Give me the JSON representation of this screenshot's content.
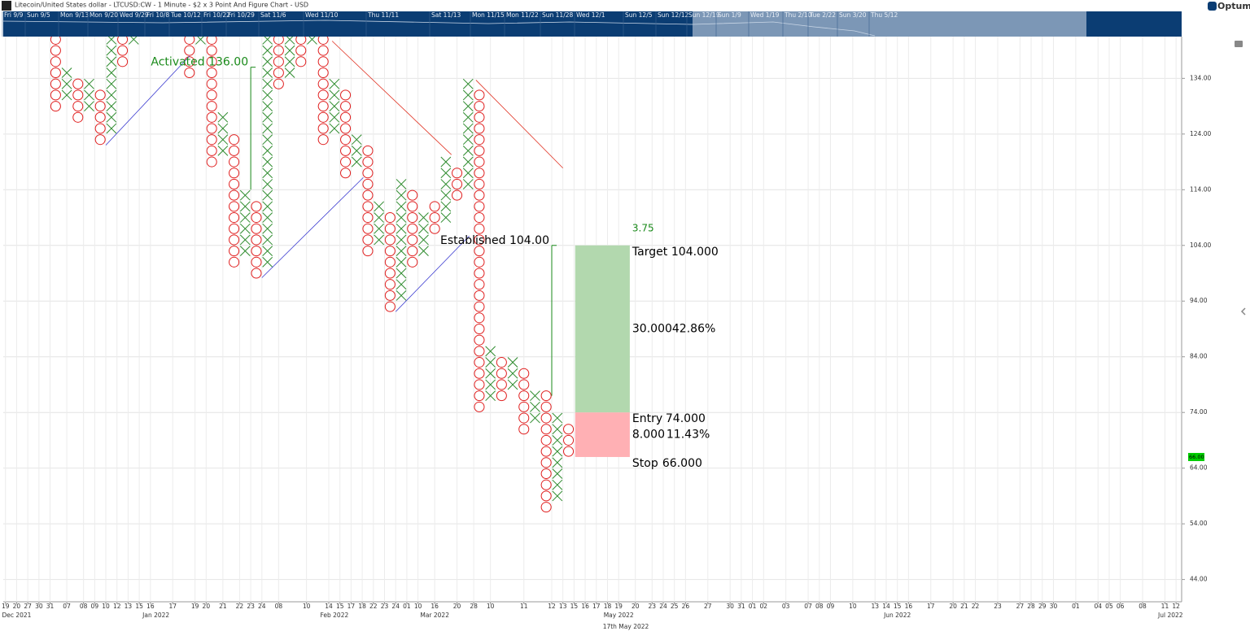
{
  "chart_data": {
    "type": "point_and_figure",
    "title": "Litecoin/United States dollar - LTCUSD:CW - 1 Minute - $2 x 3 Point And Figure Chart - USD",
    "brand": "Optuma",
    "caption": "17th May 2022",
    "box_size": 2,
    "x_color": "#2e8b2e",
    "o_color": "#e02020",
    "grid": true,
    "xlim": [
      -4.7,
      101
    ],
    "ylim": [
      40,
      141.5
    ],
    "yticks": [
      {
        "value": 44,
        "label": "44.00"
      },
      {
        "value": 54,
        "label": "54.00"
      },
      {
        "value": 64,
        "label": "64.00"
      },
      {
        "value": 74,
        "label": "74.00"
      },
      {
        "value": 84,
        "label": "84.00"
      },
      {
        "value": 94,
        "label": "94.00"
      },
      {
        "value": 104,
        "label": "104.00"
      },
      {
        "value": 114,
        "label": "114.00"
      },
      {
        "value": 124,
        "label": "124.00"
      },
      {
        "value": 134,
        "label": "134.00"
      }
    ],
    "xticks": [
      {
        "value": -4.5,
        "label": "19"
      },
      {
        "value": -3.5,
        "label": "20"
      },
      {
        "value": -2.5,
        "label": "27"
      },
      {
        "value": -1.5,
        "label": "30"
      },
      {
        "value": -0.5,
        "label": "31"
      },
      {
        "value": 1,
        "label": "07"
      },
      {
        "value": 2.5,
        "label": "08"
      },
      {
        "value": 3.5,
        "label": "09"
      },
      {
        "value": 4.5,
        "label": "10"
      },
      {
        "value": 5.5,
        "label": "12"
      },
      {
        "value": 6.5,
        "label": "13"
      },
      {
        "value": 7.5,
        "label": "15"
      },
      {
        "value": 8.5,
        "label": "16"
      },
      {
        "value": 10.5,
        "label": "17"
      },
      {
        "value": 12.5,
        "label": "19"
      },
      {
        "value": 13.5,
        "label": "20"
      },
      {
        "value": 15,
        "label": "21"
      },
      {
        "value": 16.5,
        "label": "22"
      },
      {
        "value": 17.5,
        "label": "23"
      },
      {
        "value": 18.5,
        "label": "24"
      },
      {
        "value": 20,
        "label": "08"
      },
      {
        "value": 22.5,
        "label": "10"
      },
      {
        "value": 24.5,
        "label": "14"
      },
      {
        "value": 25.5,
        "label": "15"
      },
      {
        "value": 26.5,
        "label": "17"
      },
      {
        "value": 27.5,
        "label": "18"
      },
      {
        "value": 28.5,
        "label": "22"
      },
      {
        "value": 29.5,
        "label": "23"
      },
      {
        "value": 30.5,
        "label": "24"
      },
      {
        "value": 31.5,
        "label": "01"
      },
      {
        "value": 32.5,
        "label": "10"
      },
      {
        "value": 34,
        "label": "16"
      },
      {
        "value": 36,
        "label": "20"
      },
      {
        "value": 37.5,
        "label": "28"
      },
      {
        "value": 39,
        "label": "10"
      },
      {
        "value": 42,
        "label": "11"
      },
      {
        "value": 44.5,
        "label": "12"
      },
      {
        "value": 45.5,
        "label": "13"
      },
      {
        "value": 46.5,
        "label": "15"
      },
      {
        "value": 47.5,
        "label": "16"
      },
      {
        "value": 48.5,
        "label": "17"
      },
      {
        "value": 49.5,
        "label": "18"
      },
      {
        "value": 50.5,
        "label": "19"
      },
      {
        "value": 52,
        "label": "20"
      },
      {
        "value": 53.5,
        "label": "23"
      },
      {
        "value": 54.5,
        "label": "24"
      },
      {
        "value": 55.5,
        "label": "25"
      },
      {
        "value": 56.5,
        "label": "26"
      },
      {
        "value": 58.5,
        "label": "27"
      },
      {
        "value": 60.5,
        "label": "30"
      },
      {
        "value": 61.5,
        "label": "31"
      },
      {
        "value": 62.5,
        "label": "01"
      },
      {
        "value": 63.5,
        "label": "02"
      },
      {
        "value": 65.5,
        "label": "03"
      },
      {
        "value": 67.5,
        "label": "07"
      },
      {
        "value": 68.5,
        "label": "08"
      },
      {
        "value": 69.5,
        "label": "09"
      },
      {
        "value": 71.5,
        "label": "10"
      },
      {
        "value": 73.5,
        "label": "13"
      },
      {
        "value": 74.5,
        "label": "14"
      },
      {
        "value": 75.5,
        "label": "15"
      },
      {
        "value": 76.5,
        "label": "16"
      },
      {
        "value": 78.5,
        "label": "17"
      },
      {
        "value": 80.5,
        "label": "20"
      },
      {
        "value": 81.5,
        "label": "21"
      },
      {
        "value": 82.5,
        "label": "22"
      },
      {
        "value": 84.5,
        "label": "23"
      },
      {
        "value": 86.5,
        "label": "27"
      },
      {
        "value": 87.5,
        "label": "28"
      },
      {
        "value": 88.5,
        "label": "29"
      },
      {
        "value": 89.5,
        "label": "30"
      },
      {
        "value": 91.5,
        "label": "01"
      },
      {
        "value": 93.5,
        "label": "04"
      },
      {
        "value": 94.5,
        "label": "05"
      },
      {
        "value": 95.5,
        "label": "06"
      },
      {
        "value": 97.5,
        "label": "08"
      },
      {
        "value": 99.5,
        "label": "11"
      },
      {
        "value": 100.5,
        "label": "12"
      }
    ],
    "month_ticks": [
      {
        "value": -3.5,
        "label": "Dec 2021"
      },
      {
        "value": 9,
        "label": "Jan 2022"
      },
      {
        "value": 25,
        "label": "Feb 2022"
      },
      {
        "value": 34,
        "label": "Mar 2022"
      },
      {
        "value": 50.5,
        "label": "May 2022"
      },
      {
        "value": 75.5,
        "label": "Jun 2022"
      },
      {
        "value": 100,
        "label": "Jul 2022"
      }
    ],
    "navigator_labels": [
      "Fri 9/9",
      "Sun 9/5",
      "Mon 9/13",
      "Mon 9/20",
      "Wed 9/29",
      "Fri 10/8",
      "Tue 10/12",
      "Fri 10/22",
      "Fri 10/29",
      "Sat 11/6",
      "Wed 11/10",
      "Thu 11/11",
      "Sat 11/13",
      "Mon 11/15",
      "Mon 11/22",
      "Sun 11/28",
      "Wed 12/1",
      "Sun 12/5",
      "Sun 12/12",
      "Sun 12/19",
      "Sun 1/9",
      "Wed 1/19",
      "Thu 2/10",
      "Tue 2/22",
      "Sun 3/20",
      "Thu 5/12"
    ],
    "columns": [
      {
        "x": 0,
        "type": "O",
        "low": 129,
        "high": 141
      },
      {
        "x": 1,
        "type": "X",
        "low": 131,
        "high": 135
      },
      {
        "x": 2,
        "type": "O",
        "low": 127,
        "high": 133
      },
      {
        "x": 3,
        "type": "X",
        "low": 129,
        "high": 133
      },
      {
        "x": 4,
        "type": "O",
        "low": 123,
        "high": 131
      },
      {
        "x": 5,
        "type": "X",
        "low": 125,
        "high": 143
      },
      {
        "x": 6,
        "type": "O",
        "low": 137,
        "high": 141
      },
      {
        "x": 7,
        "type": "X",
        "low": 141,
        "high": 143
      },
      {
        "x": 12,
        "type": "O",
        "low": 135,
        "high": 141
      },
      {
        "x": 13,
        "type": "X",
        "low": 141,
        "high": 143
      },
      {
        "x": 14,
        "type": "O",
        "low": 119,
        "high": 141
      },
      {
        "x": 15,
        "type": "X",
        "low": 121,
        "high": 127
      },
      {
        "x": 16,
        "type": "O",
        "low": 101,
        "high": 123
      },
      {
        "x": 17,
        "type": "X",
        "low": 103,
        "high": 113
      },
      {
        "x": 18,
        "type": "O",
        "low": 99,
        "high": 111
      },
      {
        "x": 19,
        "type": "X",
        "low": 101,
        "high": 143
      },
      {
        "x": 20,
        "type": "O",
        "low": 133,
        "high": 141
      },
      {
        "x": 21,
        "type": "X",
        "low": 135,
        "high": 143
      },
      {
        "x": 22,
        "type": "O",
        "low": 137,
        "high": 141
      },
      {
        "x": 23,
        "type": "X",
        "low": 141,
        "high": 143
      },
      {
        "x": 24,
        "type": "O",
        "low": 123,
        "high": 141
      },
      {
        "x": 25,
        "type": "X",
        "low": 125,
        "high": 133
      },
      {
        "x": 26,
        "type": "O",
        "low": 117,
        "high": 131
      },
      {
        "x": 27,
        "type": "X",
        "low": 119,
        "high": 123
      },
      {
        "x": 28,
        "type": "O",
        "low": 103,
        "high": 121
      },
      {
        "x": 29,
        "type": "X",
        "low": 105,
        "high": 111
      },
      {
        "x": 30,
        "type": "O",
        "low": 93,
        "high": 109
      },
      {
        "x": 31,
        "type": "X",
        "low": 95,
        "high": 115
      },
      {
        "x": 32,
        "type": "O",
        "low": 101,
        "high": 113
      },
      {
        "x": 33,
        "type": "X",
        "low": 103,
        "high": 109
      },
      {
        "x": 34,
        "type": "O",
        "low": 107,
        "high": 111
      },
      {
        "x": 35,
        "type": "X",
        "low": 109,
        "high": 119
      },
      {
        "x": 36,
        "type": "O",
        "low": 113,
        "high": 117
      },
      {
        "x": 37,
        "type": "X",
        "low": 115,
        "high": 133
      },
      {
        "x": 38,
        "type": "O",
        "low": 75,
        "high": 131
      },
      {
        "x": 39,
        "type": "X",
        "low": 77,
        "high": 85
      },
      {
        "x": 40,
        "type": "O",
        "low": 77,
        "high": 83
      },
      {
        "x": 41,
        "type": "X",
        "low": 79,
        "high": 83
      },
      {
        "x": 42,
        "type": "O",
        "low": 71,
        "high": 81
      },
      {
        "x": 43,
        "type": "X",
        "low": 73,
        "high": 77
      },
      {
        "x": 44,
        "type": "O",
        "low": 57,
        "high": 77
      },
      {
        "x": 45,
        "type": "X",
        "low": 59,
        "high": 73
      },
      {
        "x": 46,
        "type": "O",
        "low": 67,
        "high": 71
      }
    ],
    "trendlines": [
      {
        "x1": 4.5,
        "y1": 122,
        "x2": 12,
        "y2": 138,
        "color": "#3a3ad0"
      },
      {
        "x1": 18.5,
        "y1": 98.2,
        "x2": 27.6,
        "y2": 116.2,
        "color": "#3a3ad0"
      },
      {
        "x1": 30.5,
        "y1": 92.1,
        "x2": 37.1,
        "y2": 105.7,
        "color": "#3a3ad0"
      },
      {
        "x1": 24.8,
        "y1": 140.7,
        "x2": 35.5,
        "y2": 120.3,
        "color": "#e03020"
      },
      {
        "x1": 37.7,
        "y1": 133.7,
        "x2": 45.5,
        "y2": 117.9,
        "color": "#e03020"
      }
    ],
    "annotations": [
      {
        "text": "Activated 136.00",
        "x": 17.5,
        "value": 136,
        "low": 114,
        "color": "#1a8a1a"
      },
      {
        "text": "Established 104.00",
        "x": 44.5,
        "value": 104,
        "low": 77,
        "color": "#000000"
      }
    ],
    "position": {
      "x_range": [
        46.6,
        51.5
      ],
      "target": 104,
      "entry": 74,
      "stop": 66,
      "target_text": "Target",
      "target_label": "104.000",
      "entry_text": "Entry",
      "entry_label": "74.000",
      "stop_text": "Stop",
      "stop_label": "66.000",
      "reward": "30.000",
      "reward_pct": "42.86%",
      "risk": "8.000",
      "risk_pct": "11.43%",
      "ratio": "3.75",
      "reward_color": "#b2d8ae",
      "risk_color": "#ffb0b4"
    },
    "last_price": {
      "value": 66,
      "label": "66.00",
      "color": "#00cc00"
    }
  }
}
